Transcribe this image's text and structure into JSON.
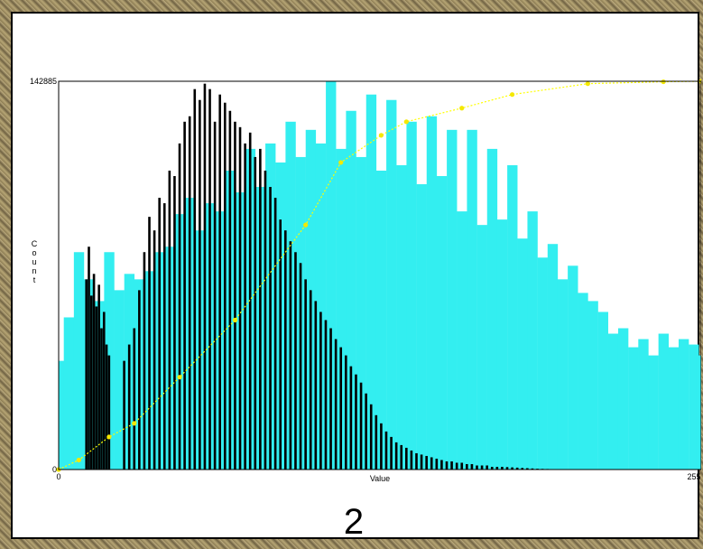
{
  "chart_data": {
    "type": "bar",
    "title": "2",
    "xlabel": "Value",
    "ylabel": "Count",
    "xlim": [
      0,
      255
    ],
    "ylim": [
      0,
      142885
    ],
    "x_tick_labels": [
      "0",
      "255"
    ],
    "y_tick_labels": [
      "0",
      "142885"
    ],
    "colors": {
      "original": "#33eef0",
      "equalized": "#000000",
      "cdf_line": "#ffff00",
      "cdf_point": "#f4e800"
    },
    "series": [
      {
        "key": "original",
        "style": "dense histogram",
        "x": [
          0,
          4,
          8,
          12,
          16,
          20,
          24,
          28,
          32,
          36,
          40,
          44,
          48,
          52,
          56,
          60,
          64,
          68,
          72,
          76,
          80,
          84,
          88,
          92,
          96,
          100,
          104,
          108,
          112,
          116,
          120,
          124,
          128,
          132,
          136,
          140,
          144,
          148,
          152,
          156,
          160,
          164,
          168,
          172,
          176,
          180,
          184,
          188,
          192,
          196,
          200,
          204,
          208,
          212,
          216,
          220,
          224,
          228,
          232,
          236,
          240,
          244,
          248,
          252,
          255
        ],
        "values": [
          40000,
          56000,
          80000,
          70000,
          62000,
          80000,
          66000,
          72000,
          70000,
          73000,
          80000,
          82000,
          94000,
          100000,
          88000,
          98000,
          95000,
          110000,
          102000,
          118000,
          104000,
          120000,
          113000,
          128000,
          115000,
          125000,
          120000,
          142885,
          118000,
          132000,
          115000,
          138000,
          110000,
          136000,
          112000,
          128000,
          105000,
          130000,
          108000,
          125000,
          95000,
          125000,
          90000,
          118000,
          92000,
          112000,
          85000,
          95000,
          78000,
          83000,
          70000,
          75000,
          65000,
          62000,
          58000,
          50000,
          52000,
          45000,
          48000,
          42000,
          50000,
          45000,
          48000,
          46000,
          42000
        ]
      },
      {
        "key": "equalized",
        "style": "sparse comb",
        "x": [
          11,
          12,
          13,
          14,
          15,
          16,
          17,
          18,
          19,
          20,
          26,
          28,
          30,
          32,
          34,
          36,
          38,
          40,
          42,
          44,
          46,
          48,
          50,
          52,
          54,
          56,
          58,
          60,
          62,
          64,
          66,
          68,
          70,
          72,
          74,
          76,
          78,
          80,
          82,
          84,
          86,
          88,
          90,
          92,
          94,
          96,
          98,
          100,
          102,
          104,
          106,
          108,
          110,
          112,
          114,
          116,
          118,
          120,
          122,
          124,
          126,
          128,
          130,
          132,
          134,
          136,
          138,
          140,
          142,
          144,
          146,
          148,
          150,
          152,
          154,
          156,
          158,
          160,
          162,
          164,
          166,
          168,
          170,
          172,
          174,
          176,
          178,
          180,
          182,
          184,
          186,
          188,
          190,
          192,
          194,
          196,
          198,
          200,
          202,
          204,
          206,
          208,
          210,
          212,
          214,
          216,
          218,
          220,
          222,
          224,
          226,
          228,
          230,
          232,
          234,
          236,
          238,
          240,
          242,
          244,
          246,
          248,
          250,
          252
        ],
        "values": [
          70000,
          82000,
          64000,
          72000,
          60000,
          68000,
          52000,
          58000,
          46000,
          42000,
          40000,
          46000,
          52000,
          66000,
          80000,
          93000,
          88000,
          100000,
          98000,
          110000,
          108000,
          120000,
          128000,
          130000,
          140000,
          136000,
          142000,
          140000,
          128000,
          138000,
          135000,
          132000,
          128000,
          126000,
          120000,
          124000,
          115000,
          118000,
          110000,
          104000,
          100000,
          92000,
          88000,
          84000,
          80000,
          76000,
          70000,
          66000,
          62000,
          58000,
          55000,
          52000,
          48000,
          45000,
          42000,
          38000,
          35000,
          32000,
          28000,
          24000,
          20000,
          17000,
          14000,
          12000,
          10000,
          9000,
          8000,
          7000,
          6000,
          5500,
          5000,
          4500,
          4000,
          3500,
          3000,
          3000,
          2500,
          2500,
          2000,
          2000,
          1500,
          1500,
          1500,
          1000,
          1000,
          1000,
          900,
          800,
          700,
          600,
          500,
          400,
          300,
          250,
          200,
          150,
          100,
          90,
          80,
          70,
          60,
          50,
          40,
          30,
          20,
          10,
          10,
          10,
          10,
          10,
          10,
          10,
          10,
          10,
          10,
          10,
          10,
          10,
          10,
          10,
          10,
          10,
          10,
          10
        ]
      },
      {
        "key": "cdf",
        "style": "dotted line with markers",
        "x": [
          0,
          8,
          20,
          30,
          48,
          70,
          98,
          112,
          128,
          138,
          160,
          180,
          210,
          240,
          255
        ],
        "values": [
          0,
          3500,
          12000,
          17000,
          34000,
          55000,
          90000,
          113000,
          123000,
          128000,
          133000,
          138000,
          142000,
          142700,
          142885
        ]
      }
    ],
    "grid": false,
    "legend": "none"
  }
}
